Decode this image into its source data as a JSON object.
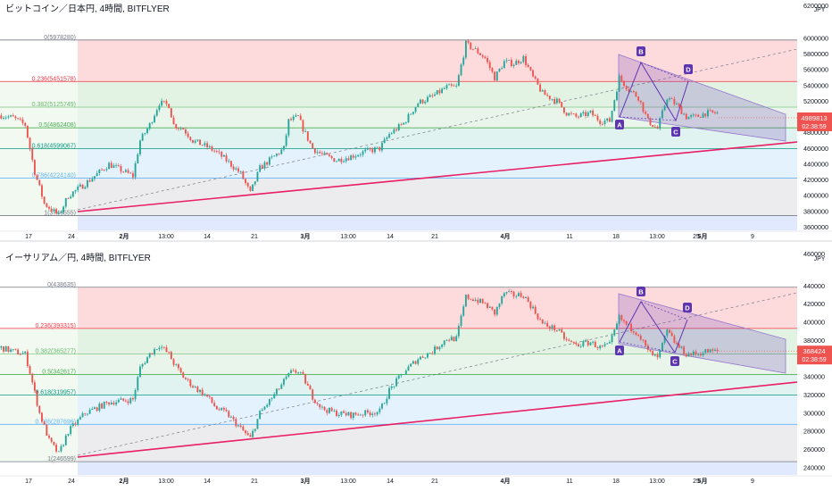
{
  "chart_data": [
    {
      "type": "candlestick",
      "title": "ビットコイン／日本円, 4時間, BITFLYER",
      "currency": "JPY",
      "yaxis_ticks": [
        "6000000",
        "5800000",
        "5600000",
        "5400000",
        "5200000",
        "5000000",
        "4800000",
        "4600000",
        "4400000",
        "4200000",
        "4000000",
        "3800000",
        "3600000"
      ],
      "yaxis_top_partial": "6200000",
      "ylim": [
        3560000,
        6260000
      ],
      "last_price": "4989813",
      "countdown": "02:38:59",
      "fib_levels": [
        {
          "label": "0(5978280)",
          "value": 5978280
        },
        {
          "label": "0.236(5451578)",
          "value": 5451578
        },
        {
          "label": "0.382(5125749)",
          "value": 5125749
        },
        {
          "label": "0.5(4862408)",
          "value": 4862408
        },
        {
          "label": "0.618(4599067)",
          "value": 4599067
        },
        {
          "label": "0.786(4224140)",
          "value": 4224140
        },
        {
          "label": "1(3746555)",
          "value": 3746555
        }
      ],
      "pattern_points": [
        "A",
        "B",
        "C",
        "D"
      ],
      "price_path": [
        [
          0,
          5020000
        ],
        [
          5,
          4990000
        ],
        [
          10,
          4900000
        ],
        [
          14,
          4300000
        ],
        [
          18,
          3900000
        ],
        [
          24,
          3750000
        ],
        [
          28,
          4000000
        ],
        [
          35,
          4150000
        ],
        [
          45,
          4400000
        ],
        [
          55,
          4250000
        ],
        [
          58,
          4700000
        ],
        [
          62,
          4900000
        ],
        [
          66,
          5180000
        ],
        [
          70,
          5150000
        ],
        [
          72,
          4900000
        ],
        [
          76,
          4850000
        ],
        [
          80,
          4700000
        ],
        [
          86,
          4620000
        ],
        [
          90,
          4550000
        ],
        [
          94,
          4450000
        ],
        [
          100,
          4280000
        ],
        [
          104,
          4030000
        ],
        [
          108,
          4350000
        ],
        [
          114,
          4500000
        ],
        [
          118,
          4600000
        ],
        [
          120,
          4950000
        ],
        [
          124,
          5000000
        ],
        [
          126,
          4850000
        ],
        [
          130,
          4600000
        ],
        [
          134,
          4520000
        ],
        [
          140,
          4450000
        ],
        [
          146,
          4500000
        ],
        [
          152,
          4560000
        ],
        [
          158,
          4600000
        ],
        [
          162,
          4780000
        ],
        [
          168,
          4920000
        ],
        [
          174,
          5180000
        ],
        [
          180,
          5260000
        ],
        [
          186,
          5380000
        ],
        [
          190,
          5380000
        ],
        [
          194,
          5930000
        ],
        [
          198,
          5850000
        ],
        [
          202,
          5750000
        ],
        [
          206,
          5500000
        ],
        [
          210,
          5700000
        ],
        [
          214,
          5680000
        ],
        [
          218,
          5750000
        ],
        [
          222,
          5500000
        ],
        [
          226,
          5300000
        ],
        [
          232,
          5200000
        ],
        [
          236,
          5050000
        ],
        [
          240,
          5000000
        ],
        [
          246,
          5050000
        ],
        [
          250,
          4950000
        ],
        [
          254,
          4950000
        ],
        [
          258,
          5500000
        ],
        [
          262,
          5350000
        ],
        [
          266,
          5250000
        ],
        [
          270,
          4950000
        ],
        [
          274,
          4850000
        ],
        [
          278,
          5250000
        ],
        [
          282,
          5150000
        ],
        [
          286,
          5000000
        ],
        [
          290,
          5000000
        ],
        [
          294,
          5050000
        ],
        [
          298,
          5050000
        ]
      ],
      "xaxis_ticks": [
        "17",
        "24",
        "2月",
        "13:00",
        "14",
        "21",
        "3月",
        "13:00",
        "14",
        "21",
        "4月",
        "11",
        "18",
        "13:00",
        "25",
        "5月",
        "9"
      ]
    },
    {
      "type": "candlestick",
      "title": "イーサリアム／円, 4時間, BITFLYER",
      "currency": "JPY",
      "yaxis_ticks": [
        "440000",
        "420000",
        "400000",
        "380000",
        "360000",
        "340000",
        "320000",
        "300000",
        "280000",
        "260000",
        "240000"
      ],
      "yaxis_top_partial": "460000",
      "ylim": [
        232000,
        462000
      ],
      "last_price": "368424",
      "countdown": "02:38:59",
      "fib_levels": [
        {
          "label": "0(438635)",
          "value": 438635
        },
        {
          "label": "0.236(393315)",
          "value": 393315
        },
        {
          "label": "0.382(365277)",
          "value": 365277
        },
        {
          "label": "0.5(342617)",
          "value": 342617
        },
        {
          "label": "0.618(319957)",
          "value": 319957
        },
        {
          "label": "0.786(287696)",
          "value": 287696
        },
        {
          "label": "1(246599)",
          "value": 246599
        }
      ],
      "pattern_points": [
        "A",
        "B",
        "C",
        "D"
      ],
      "price_path": [
        [
          0,
          372000
        ],
        [
          5,
          368000
        ],
        [
          10,
          365000
        ],
        [
          12,
          345000
        ],
        [
          16,
          300000
        ],
        [
          20,
          270000
        ],
        [
          24,
          255000
        ],
        [
          28,
          280000
        ],
        [
          35,
          300000
        ],
        [
          45,
          312000
        ],
        [
          55,
          315000
        ],
        [
          58,
          350000
        ],
        [
          62,
          365000
        ],
        [
          66,
          375000
        ],
        [
          70,
          365000
        ],
        [
          72,
          355000
        ],
        [
          76,
          340000
        ],
        [
          80,
          330000
        ],
        [
          86,
          318000
        ],
        [
          90,
          305000
        ],
        [
          94,
          300000
        ],
        [
          100,
          283000
        ],
        [
          104,
          272000
        ],
        [
          108,
          300000
        ],
        [
          114,
          320000
        ],
        [
          118,
          335000
        ],
        [
          122,
          348000
        ],
        [
          126,
          340000
        ],
        [
          130,
          318000
        ],
        [
          134,
          305000
        ],
        [
          140,
          300000
        ],
        [
          146,
          298000
        ],
        [
          152,
          300000
        ],
        [
          158,
          302000
        ],
        [
          162,
          325000
        ],
        [
          168,
          345000
        ],
        [
          174,
          360000
        ],
        [
          180,
          368000
        ],
        [
          186,
          382000
        ],
        [
          190,
          382000
        ],
        [
          194,
          428000
        ],
        [
          198,
          425000
        ],
        [
          202,
          420000
        ],
        [
          206,
          410000
        ],
        [
          210,
          432000
        ],
        [
          214,
          430000
        ],
        [
          218,
          430000
        ],
        [
          222,
          415000
        ],
        [
          226,
          398000
        ],
        [
          232,
          392000
        ],
        [
          236,
          380000
        ],
        [
          240,
          375000
        ],
        [
          246,
          378000
        ],
        [
          250,
          372000
        ],
        [
          254,
          375000
        ],
        [
          258,
          405000
        ],
        [
          262,
          395000
        ],
        [
          266,
          388000
        ],
        [
          270,
          368000
        ],
        [
          274,
          360000
        ],
        [
          278,
          390000
        ],
        [
          282,
          375000
        ],
        [
          286,
          365000
        ],
        [
          290,
          365000
        ],
        [
          294,
          368000
        ],
        [
          298,
          368000
        ]
      ],
      "xaxis_ticks": [
        "17",
        "24",
        "2月",
        "13:00",
        "14",
        "21",
        "3月",
        "13:00",
        "14",
        "21",
        "4月",
        "11",
        "18",
        "13:00",
        "25",
        "5月",
        "9"
      ]
    }
  ],
  "colors": {
    "up": "#26a69a",
    "down": "#ef5350",
    "trend": "#e91e63",
    "pattern": "#5e35b1",
    "label_red": "#ef5350",
    "fib_bands": [
      "rgba(242,54,69,0.18)",
      "rgba(76,175,80,0.16)",
      "rgba(76,175,80,0.12)",
      "rgba(8,153,129,0.12)",
      "rgba(33,150,243,0.12)",
      "rgba(120,123,134,0.14)",
      "rgba(41,98,255,0.14)"
    ],
    "fib_lines": [
      "#787b86",
      "#f23645",
      "#81c784",
      "#4caf50",
      "#089981",
      "#64b5f6",
      "#787b86"
    ]
  }
}
